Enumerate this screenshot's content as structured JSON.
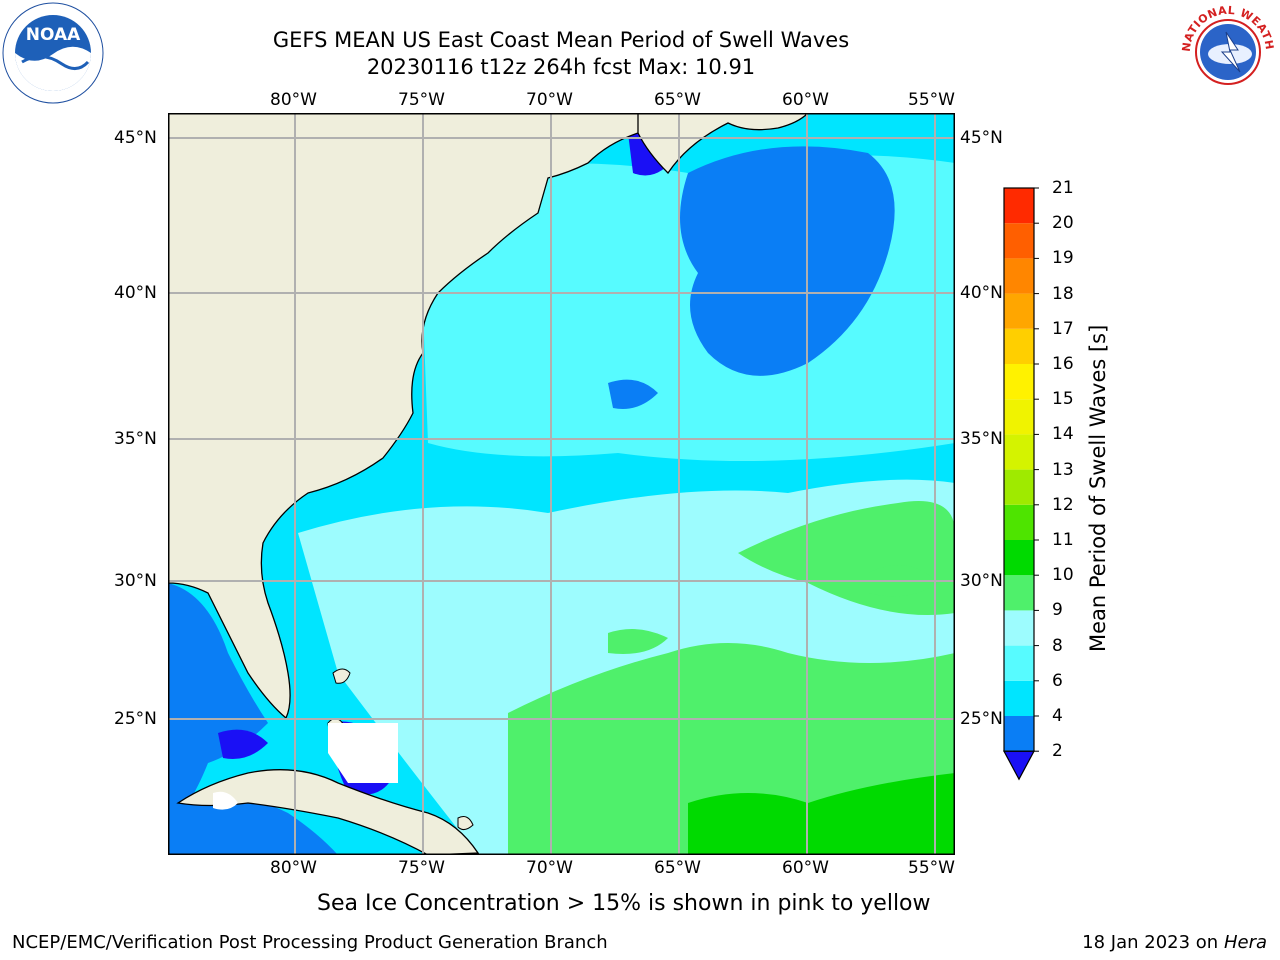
{
  "title": {
    "line1": "GEFS MEAN US East Coast Mean Period of Swell Waves",
    "line2": "20230116 t12z 264h fcst   Max: 10.91"
  },
  "logos": {
    "left": {
      "text": "NOAA",
      "icon": "noaa-logo-icon"
    },
    "right": {
      "text": "NATIONAL WEATHER SERVICE",
      "icon": "nws-logo-icon"
    }
  },
  "map": {
    "lon_labels": [
      "80°W",
      "75°W",
      "70°W",
      "65°W",
      "60°W",
      "55°W"
    ],
    "lat_labels": [
      "45°N",
      "40°N",
      "35°N",
      "30°N",
      "25°N"
    ]
  },
  "colorbar": {
    "label": "Mean Period of Swell Waves [s]",
    "ticks": [
      "2",
      "4",
      "6",
      "8",
      "9",
      "10",
      "11",
      "12",
      "13",
      "14",
      "15",
      "16",
      "17",
      "18",
      "19",
      "20",
      "21"
    ],
    "colors": [
      "#0a7ef5",
      "#00e5ff",
      "#57fbff",
      "#9dfcfe",
      "#4ff06b",
      "#00da00",
      "#4ee400",
      "#9fea00",
      "#d4f300",
      "#f0f300",
      "#fff200",
      "#ffcf00",
      "#ffa600",
      "#ff8600",
      "#ff5f00",
      "#ff2a00"
    ],
    "under_color": "#1a10f5"
  },
  "note": "Sea Ice Concentration > 15% is shown in pink to yellow",
  "footer": {
    "left": "NCEP/EMC/Verification Post Processing Product Generation Branch",
    "right_prefix": "18 Jan 2023 on",
    "right_machine": "Hera"
  },
  "palette": {
    "land": "#efeedc",
    "ocean_deep_blue": "#0a7ef5",
    "ocean_cyan": "#00e5ff",
    "ocean_light_cyan": "#57fbff",
    "ocean_pale": "#9dfcfe",
    "ocean_green": "#4ff06b",
    "grid": "#b0b0b0"
  }
}
